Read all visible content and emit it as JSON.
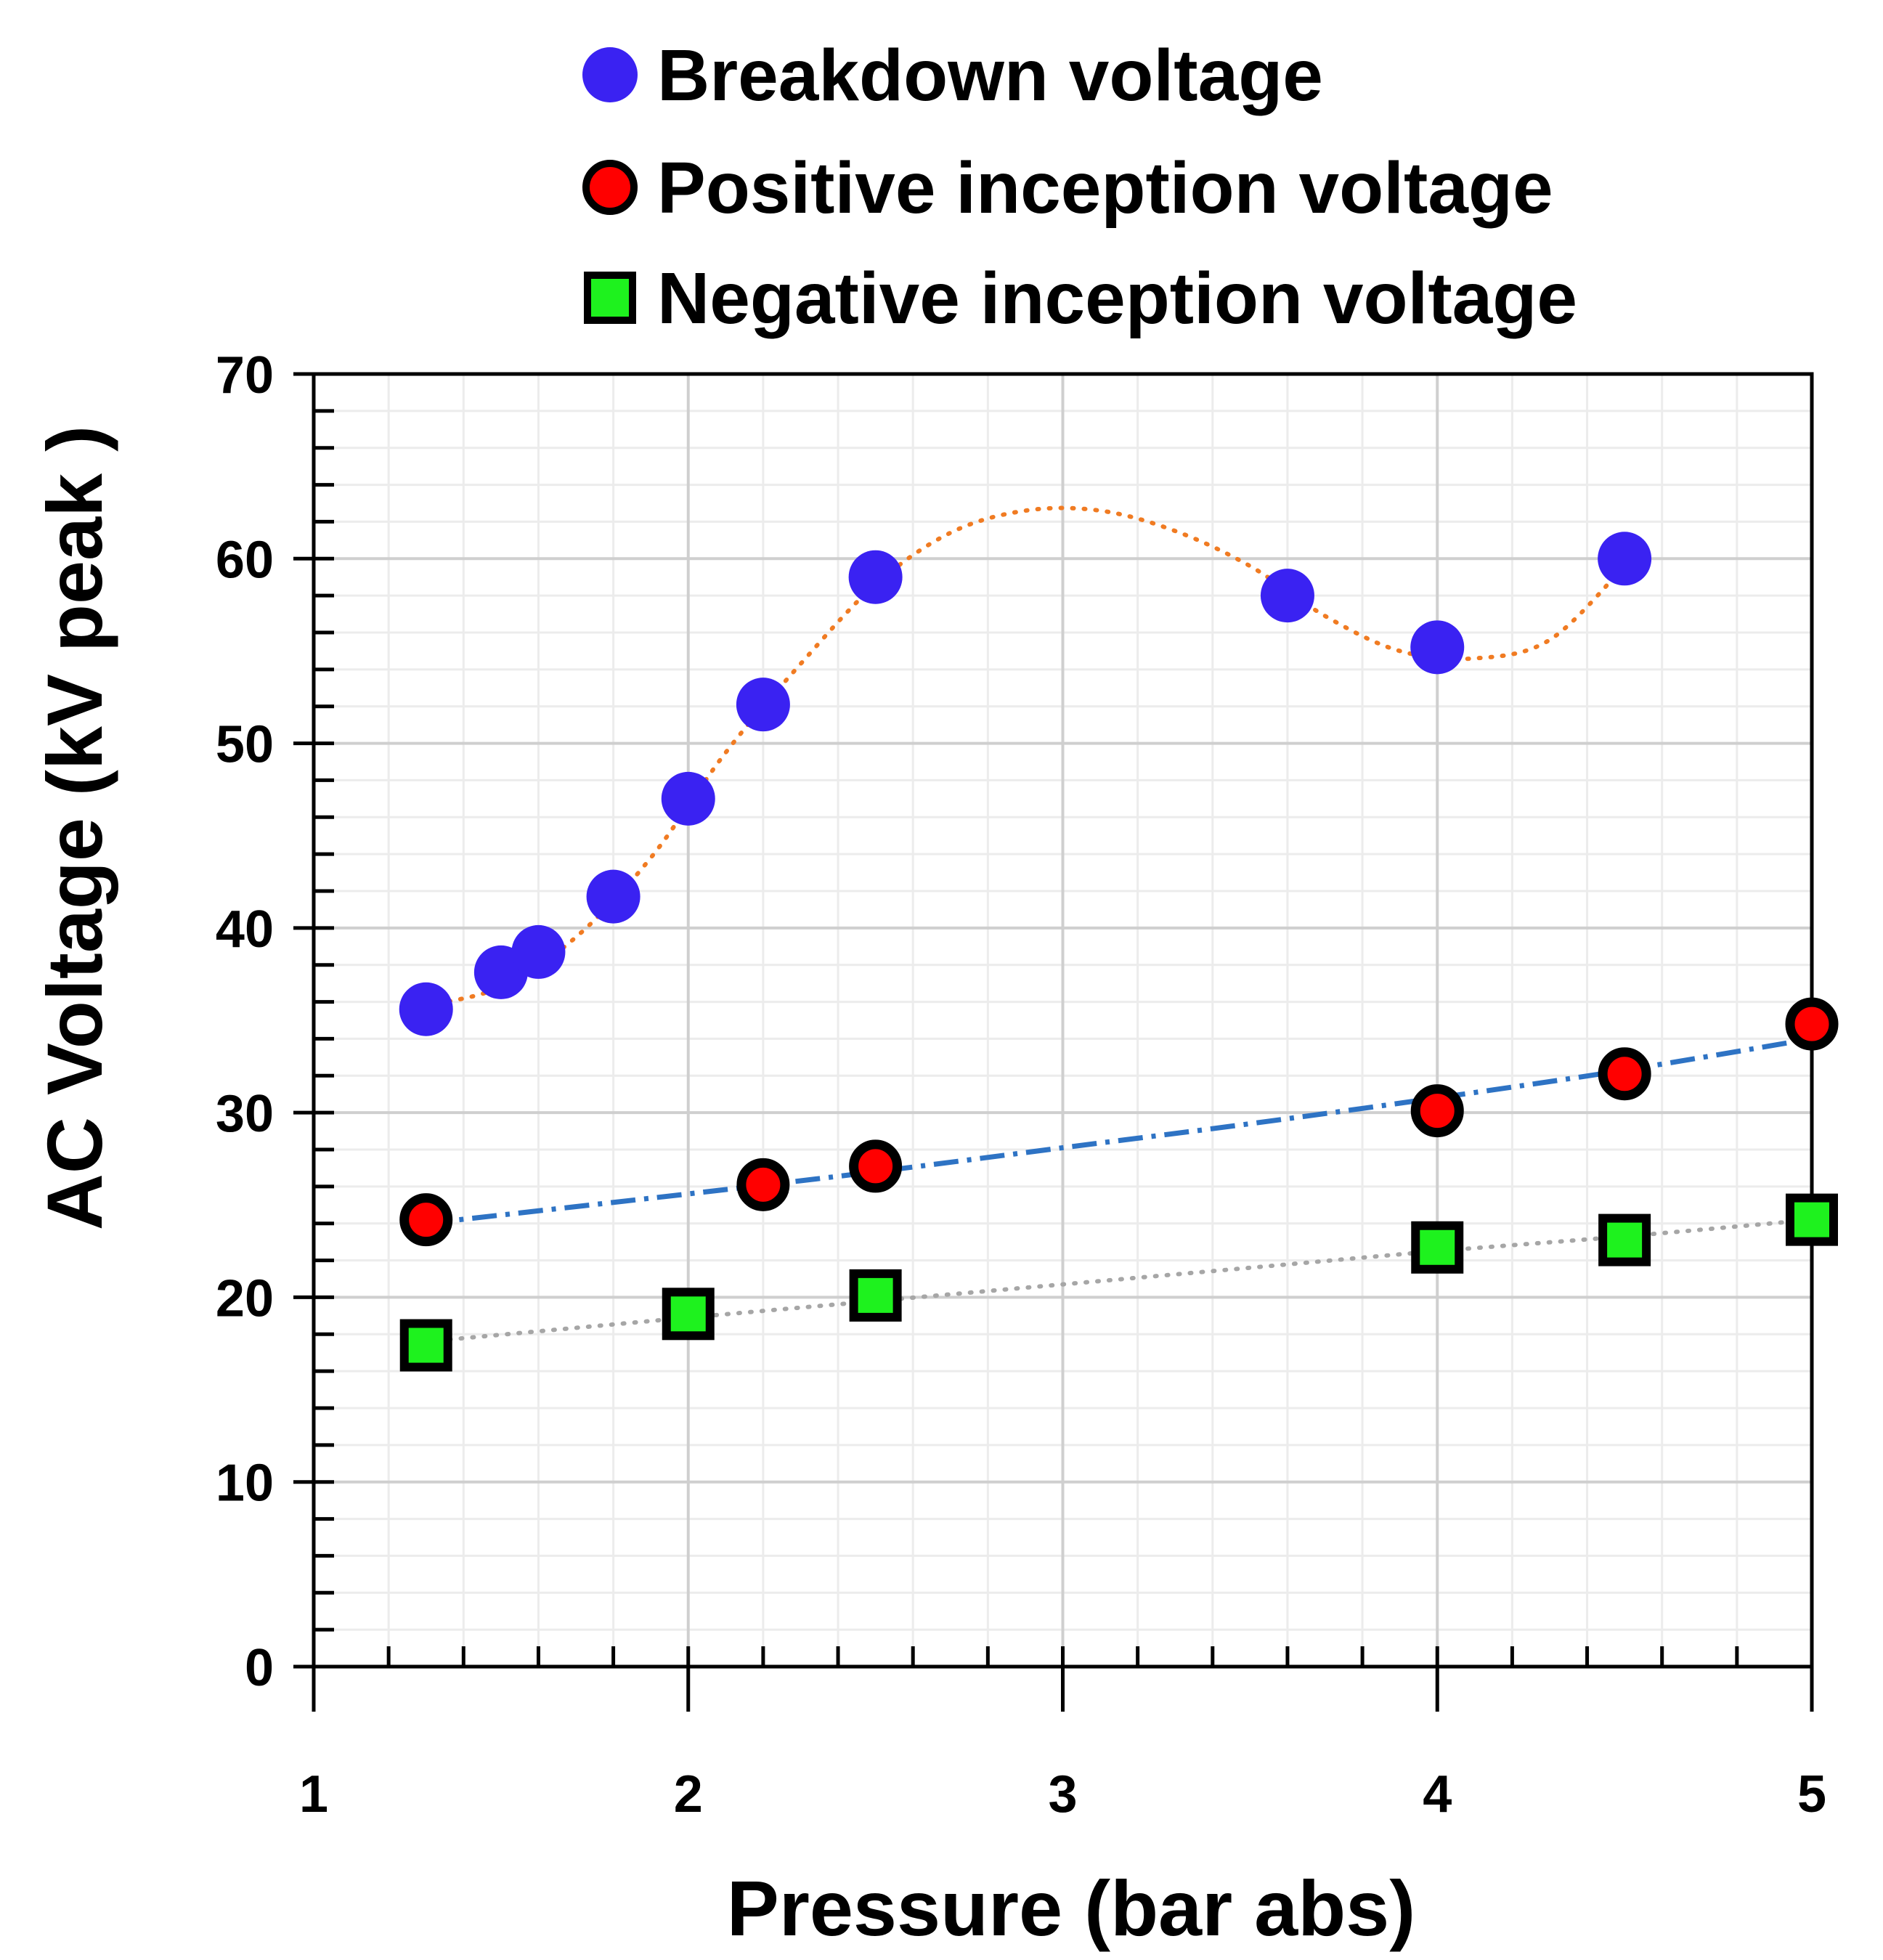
{
  "chart_data": {
    "type": "scatter",
    "title": "",
    "xlabel": "Pressure (bar abs)",
    "ylabel": "AC Voltage (kV peak )",
    "xlim": [
      1,
      5
    ],
    "ylim": [
      0,
      70
    ],
    "x_major_ticks": [
      1,
      2,
      3,
      4,
      5
    ],
    "y_major_ticks": [
      0,
      10,
      20,
      30,
      40,
      50,
      60,
      70
    ],
    "x_tick_labels": [
      "1",
      "2",
      "3",
      "4",
      "5"
    ],
    "y_tick_labels": [
      "0",
      "10",
      "20",
      "30",
      "40",
      "50",
      "60",
      "70"
    ],
    "grid": true,
    "legend_position": "top",
    "series": [
      {
        "name": "Breakdown voltage",
        "marker": "circle",
        "fill_color": "#3a22f2",
        "edge_color": "#3a22f2",
        "x": [
          1.3,
          1.5,
          1.6,
          1.8,
          2.0,
          2.2,
          2.5,
          3.6,
          4.0,
          4.5
        ],
        "y": [
          35.6,
          37.6,
          38.7,
          41.7,
          47.0,
          52.1,
          59.0,
          58.0,
          55.2,
          60.0
        ],
        "trendline": {
          "style": "dotted",
          "color": "#f07b22",
          "x": [
            1.3,
            1.5,
            1.7,
            1.9,
            2.1,
            2.3,
            2.5,
            2.7,
            2.9,
            3.1,
            3.3,
            3.5,
            3.7,
            3.9,
            4.1,
            4.3,
            4.5
          ],
          "y": [
            35.8,
            36.8,
            39.5,
            43.8,
            49.5,
            54.3,
            58.6,
            61.4,
            62.6,
            62.6,
            61.5,
            59.6,
            56.9,
            55.0,
            54.6,
            55.6,
            59.6
          ]
        }
      },
      {
        "name": "Positive inception voltage",
        "marker": "circle",
        "fill_color": "#ff0000",
        "edge_color": "#000000",
        "x": [
          1.3,
          2.2,
          2.5,
          4.0,
          4.5,
          5.0
        ],
        "y": [
          24.2,
          26.1,
          27.1,
          30.1,
          32.1,
          34.8
        ],
        "trendline": {
          "style": "dash-dot",
          "color": "#2e73c4",
          "x": [
            1.3,
            2.0,
            2.5,
            3.0,
            3.5,
            4.0,
            4.5,
            5.0
          ],
          "y": [
            24.0,
            25.6,
            26.8,
            28.1,
            29.4,
            30.8,
            32.3,
            34.0
          ]
        }
      },
      {
        "name": "Negative inception voltage",
        "marker": "square",
        "fill_color": "#1ef21e",
        "edge_color": "#000000",
        "x": [
          1.3,
          2.0,
          2.5,
          4.0,
          4.5,
          5.0
        ],
        "y": [
          17.4,
          19.1,
          20.1,
          22.7,
          23.1,
          24.2
        ],
        "trendline": {
          "style": "dotted",
          "color": "#a6a6a6",
          "x": [
            1.3,
            2.0,
            2.5,
            3.0,
            3.5,
            4.0,
            4.5,
            5.0
          ],
          "y": [
            17.6,
            18.9,
            19.8,
            20.7,
            21.6,
            22.5,
            23.3,
            24.2
          ]
        }
      }
    ]
  }
}
